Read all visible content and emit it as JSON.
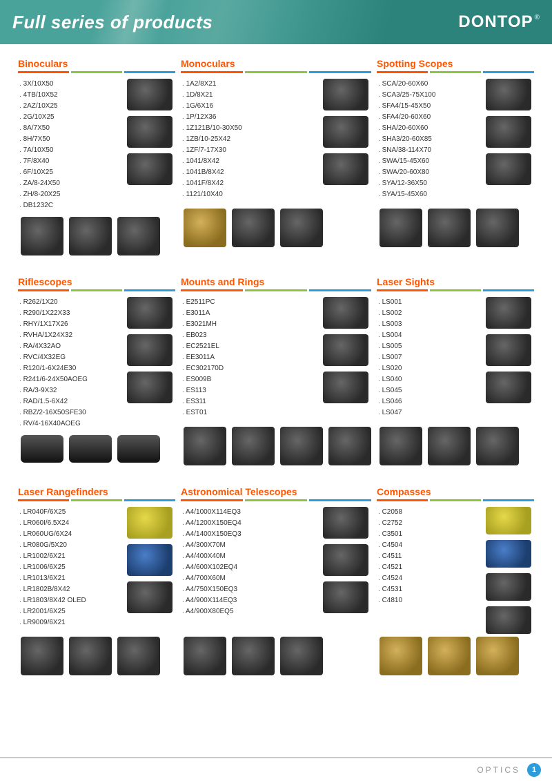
{
  "header": {
    "title": "Full series of products",
    "brand": "DONTOP",
    "reg": "®"
  },
  "colors": {
    "accent_orange": "#ff5500",
    "accent_green": "#8cc63f",
    "accent_blue": "#2d9cdb",
    "header_teal": "#3d968e",
    "text": "#333333"
  },
  "categories": [
    {
      "title": "Binoculars",
      "items": [
        "3X/10X50",
        "4TB/10X52",
        "2AZ/10X25",
        "2G/10X25",
        "8A/7X50",
        "8H/7X50",
        "7A/10X50",
        "7F/8X40",
        "6F/10X25",
        "ZA/8-24X50",
        "ZH/8-20X25",
        "DB1232C"
      ],
      "side_thumb_count": 3,
      "bottom_thumb_count": 3
    },
    {
      "title": "Monoculars",
      "items": [
        "1A2/8X21",
        "1D/8X21",
        "1G/6X16",
        "1P/12X36",
        "1Z121B/10-30X50",
        "1ZB/10-25X42",
        "1ZF/7-17X30",
        "1041/8X42",
        "1041B/8X42",
        "1041F/8X42",
        "1121/10X40"
      ],
      "side_thumb_count": 3,
      "bottom_thumb_count": 3
    },
    {
      "title": "Spotting Scopes",
      "items": [
        "SCA/20-60X60",
        "SCA3/25-75X100",
        "SFA4/15-45X50",
        "SFA4/20-60X60",
        "SHA/20-60X60",
        "SHA3/20-60X85",
        "SNA/38-114X70",
        "SWA/15-45X60",
        "SWA/20-60X80",
        "SYA/12-36X50",
        "SYA/15-45X60"
      ],
      "side_thumb_count": 3,
      "bottom_thumb_count": 3
    },
    {
      "title": "Riflescopes",
      "items": [
        "R262/1X20",
        "R290/1X22X33",
        "RHY/1X17X26",
        "RVHA/1X24X32",
        "RA/4X32AO",
        "RVC/4X32EG",
        "R120/1-6X24E30",
        "R241/6-24X50AOEG",
        "RA/3-9X32",
        "RAD/1.5-6X42",
        "RBZ/2-16X50SFE30",
        "RV/4-16X40AOEG"
      ],
      "side_thumb_count": 3,
      "bottom_thumb_count": 3
    },
    {
      "title": "Mounts and Rings",
      "items": [
        "E2511PC",
        "E3011A",
        "E3021MH",
        "EB023",
        "EC2521EL",
        "EE3011A",
        "EC302170D",
        "ES009B",
        "ES113",
        "ES311",
        "EST01"
      ],
      "side_thumb_count": 3,
      "bottom_thumb_count": 4
    },
    {
      "title": "Laser Sights",
      "items": [
        "LS001",
        "LS002",
        "LS003",
        "LS004",
        "LS005",
        "LS007",
        "LS020",
        "LS040",
        "LS045",
        "LS046",
        "LS047"
      ],
      "side_thumb_count": 3,
      "bottom_thumb_count": 3
    },
    {
      "title": "Laser Rangefinders",
      "items": [
        "LR040F/6X25",
        "LR060I/6.5X24",
        "LR060UG/6X24",
        "LR080G/5X20",
        "LR1002/6X21",
        "LR1006/6X25",
        "LR1013/6X21",
        "LR1802B/8X42",
        "LR1803/8X42 OLED",
        "LR2001/6X25",
        "LR9009/6X21"
      ],
      "side_thumb_count": 3,
      "bottom_thumb_count": 3
    },
    {
      "title": "Astronomical Telescopes",
      "items": [
        "A4/1000X114EQ3",
        "A4/1200X150EQ4",
        "A4/1400X150EQ3",
        "A4/300X70M",
        "A4/400X40M",
        "A4/600X102EQ4",
        "A4/700X60M",
        "A4/750X150EQ3",
        "A4/900X114EQ3",
        "A4/900X80EQ5"
      ],
      "side_thumb_count": 3,
      "bottom_thumb_count": 3
    },
    {
      "title": "Compasses",
      "items": [
        "C2058",
        "C2752",
        "C3501",
        "C4504",
        "C4511",
        "C4521",
        "C4524",
        "C4531",
        "C4810"
      ],
      "side_thumb_count": 4,
      "bottom_thumb_count": 3
    }
  ],
  "footer": {
    "label": "OPTICS",
    "page": "1"
  }
}
